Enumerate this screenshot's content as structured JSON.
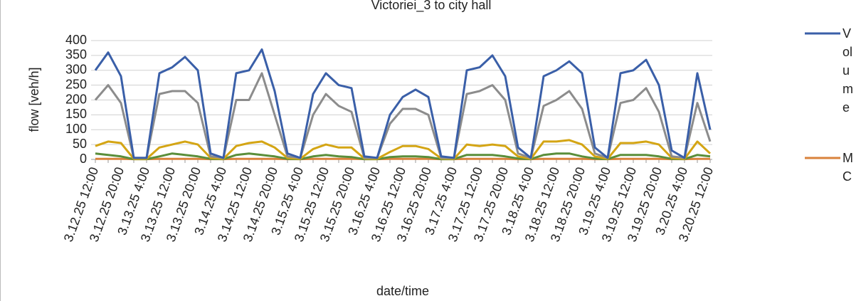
{
  "chart_data": {
    "type": "line",
    "title": "Victoriei_3 to city hall",
    "x_label": "date/time",
    "y_label": "flow [veh/h]",
    "categories": [
      "3.12.25 12:00",
      null,
      "3.12.25 20:00",
      null,
      "3.13.25 4:00",
      null,
      "3.13.25 12:00",
      null,
      "3.13.25 20:00",
      null,
      "3.14.25 4:00",
      null,
      "3.14.25 12:00",
      null,
      "3.14.25 20:00",
      null,
      "3.15.25 4:00",
      null,
      "3.15.25 12:00",
      null,
      "3.15.25 20:00",
      null,
      "3.16.25 4:00",
      null,
      "3.16.25 12:00",
      null,
      "3.16.25 20:00",
      null,
      "3.17.25 4:00",
      null,
      "3.17.25 12:00",
      null,
      "3.17.25 20:00",
      null,
      "3.18.25 4:00",
      null,
      "3.18.25 12:00",
      null,
      "3.18.25 20:00",
      null,
      "3.19.25 4:00",
      null,
      "3.19.25 12:00",
      null,
      "3.19.25 20:00",
      null,
      "3.20.25 4:00",
      null,
      "3.20.25 12:00"
    ],
    "series": [
      {
        "name": "Volume",
        "color": "#3a5fa8",
        "values": [
          300,
          360,
          280,
          5,
          5,
          290,
          310,
          345,
          300,
          20,
          5,
          290,
          300,
          370,
          230,
          20,
          5,
          220,
          290,
          250,
          240,
          10,
          5,
          150,
          210,
          235,
          210,
          10,
          5,
          300,
          310,
          350,
          280,
          40,
          5,
          280,
          300,
          330,
          290,
          40,
          5,
          290,
          300,
          335,
          250,
          30,
          5,
          290,
          100
        ]
      },
      {
        "color": "#8c8c8c",
        "values": [
          200,
          250,
          190,
          5,
          5,
          220,
          230,
          230,
          190,
          10,
          5,
          200,
          200,
          290,
          150,
          10,
          5,
          150,
          220,
          180,
          160,
          5,
          5,
          120,
          170,
          170,
          150,
          5,
          5,
          220,
          230,
          250,
          200,
          20,
          5,
          180,
          200,
          230,
          170,
          20,
          5,
          190,
          200,
          240,
          160,
          10,
          5,
          190,
          60
        ]
      },
      {
        "color": "#d4a514",
        "values": [
          45,
          60,
          55,
          2,
          2,
          40,
          50,
          60,
          50,
          5,
          2,
          45,
          55,
          60,
          40,
          5,
          2,
          35,
          50,
          40,
          40,
          3,
          2,
          25,
          45,
          45,
          35,
          3,
          2,
          50,
          45,
          50,
          45,
          10,
          2,
          60,
          60,
          65,
          50,
          10,
          2,
          55,
          55,
          60,
          50,
          5,
          2,
          60,
          20
        ]
      },
      {
        "color": "#5a8e3a",
        "values": [
          20,
          15,
          10,
          1,
          1,
          10,
          20,
          15,
          10,
          2,
          1,
          15,
          20,
          15,
          10,
          2,
          1,
          10,
          15,
          10,
          8,
          1,
          1,
          8,
          10,
          10,
          8,
          1,
          1,
          15,
          15,
          15,
          10,
          3,
          1,
          15,
          20,
          20,
          10,
          3,
          1,
          15,
          15,
          15,
          10,
          2,
          1,
          15,
          10
        ]
      },
      {
        "name": "MC",
        "color": "#d9823b",
        "values": [
          2,
          2,
          2,
          1,
          1,
          2,
          2,
          2,
          2,
          1,
          1,
          2,
          2,
          2,
          2,
          1,
          1,
          2,
          2,
          2,
          2,
          1,
          1,
          2,
          2,
          2,
          2,
          1,
          1,
          2,
          2,
          2,
          2,
          1,
          1,
          2,
          2,
          2,
          2,
          1,
          1,
          2,
          2,
          2,
          2,
          1,
          1,
          2,
          2
        ]
      }
    ],
    "ylim": [
      0,
      400
    ],
    "yticks": [
      0,
      50,
      100,
      150,
      200,
      250,
      300,
      350,
      400
    ],
    "grid": true
  }
}
